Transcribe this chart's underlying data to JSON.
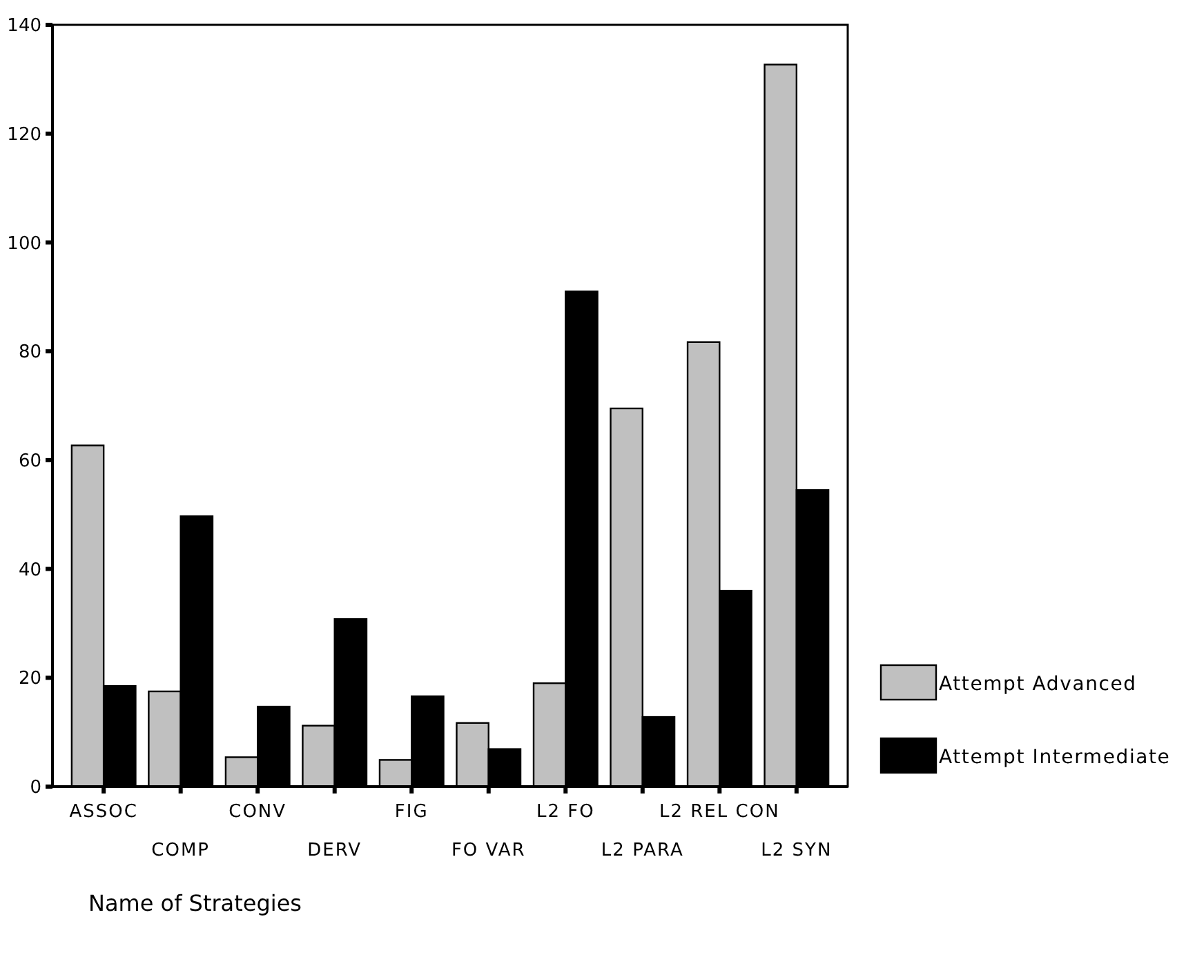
{
  "chart_data": {
    "type": "bar",
    "xlabel": "Name of Strategies",
    "categories": [
      "ASSOC",
      "COMP",
      "CONV",
      "DERV",
      "FIG",
      "FO VAR",
      "L2 FO",
      "L2 PARA",
      "L2 REL CON",
      "L2 SYN"
    ],
    "series": [
      {
        "name": "Attempt Advanced",
        "color": "#c0c0c0",
        "values": [
          62.7,
          17.5,
          5.4,
          11.2,
          4.9,
          11.7,
          19,
          69.5,
          81.7,
          132.7
        ]
      },
      {
        "name": "Attempt Intermediate",
        "color": "#000000",
        "values": [
          18.5,
          49.7,
          14.7,
          30.8,
          16.6,
          6.9,
          91,
          12.8,
          36,
          54.5
        ]
      }
    ],
    "ylim": [
      0,
      140
    ],
    "yticks": [
      0,
      20,
      40,
      60,
      80,
      100,
      120,
      140
    ],
    "grid": false,
    "legend": "right"
  }
}
